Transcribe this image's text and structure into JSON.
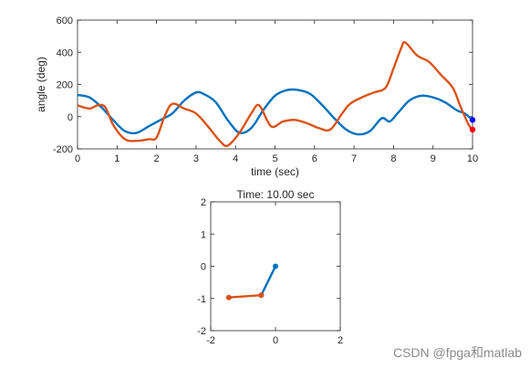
{
  "chart_data": [
    {
      "type": "line",
      "xlabel": "time (sec)",
      "ylabel": "angle (deg)",
      "xlim": [
        0,
        10
      ],
      "ylim": [
        -200,
        600
      ],
      "xticks": [
        "0",
        "1",
        "2",
        "3",
        "4",
        "5",
        "6",
        "7",
        "8",
        "9",
        "10"
      ],
      "yticks": [
        "-200",
        "0",
        "200",
        "400",
        "600"
      ],
      "grid": false,
      "series": [
        {
          "color": "#0072BD",
          "x": [
            0,
            0.3,
            0.6,
            0.9,
            1.2,
            1.5,
            1.8,
            2.1,
            2.4,
            2.7,
            3.0,
            3.2,
            3.5,
            3.8,
            4.1,
            4.4,
            4.7,
            5.0,
            5.3,
            5.6,
            5.9,
            6.2,
            6.5,
            6.8,
            7.1,
            7.4,
            7.7,
            7.9,
            8.1,
            8.4,
            8.7,
            9.0,
            9.3,
            9.6,
            9.8,
            10.0
          ],
          "y": [
            135,
            120,
            60,
            -20,
            -90,
            -100,
            -60,
            -20,
            20,
            100,
            150,
            140,
            90,
            -20,
            -100,
            -70,
            40,
            130,
            165,
            165,
            140,
            70,
            -10,
            -80,
            -110,
            -90,
            -10,
            -30,
            20,
            100,
            130,
            120,
            90,
            40,
            20,
            -20
          ]
        },
        {
          "color": "#D95319",
          "x": [
            0,
            0.3,
            0.5,
            0.7,
            0.9,
            1.2,
            1.5,
            1.8,
            2.0,
            2.2,
            2.4,
            2.7,
            3.0,
            3.3,
            3.6,
            3.8,
            4.1,
            4.4,
            4.6,
            4.9,
            5.2,
            5.5,
            5.8,
            6.1,
            6.4,
            6.7,
            6.9,
            7.2,
            7.5,
            7.8,
            8.0,
            8.2,
            8.3,
            8.6,
            8.9,
            9.2,
            9.5,
            9.7,
            9.9,
            10.0
          ],
          "y": [
            70,
            50,
            70,
            60,
            -50,
            -140,
            -150,
            -140,
            -130,
            0,
            80,
            50,
            20,
            -60,
            -150,
            -180,
            -100,
            20,
            70,
            -60,
            -30,
            -20,
            -40,
            -70,
            -80,
            20,
            80,
            120,
            150,
            180,
            300,
            430,
            460,
            380,
            340,
            260,
            180,
            60,
            -50,
            -80
          ]
        }
      ],
      "markers": [
        {
          "series": 0,
          "x": 10,
          "y": -20,
          "color": "#0000FF"
        },
        {
          "series": 1,
          "x": 10,
          "y": -80,
          "color": "#FF0000"
        }
      ]
    },
    {
      "type": "line",
      "title": "Time: 10.00 sec",
      "xlim": [
        -2,
        2
      ],
      "ylim": [
        -2,
        2
      ],
      "xticks": [
        "-2",
        "0",
        "2"
      ],
      "yticks": [
        "-2",
        "-1",
        "0",
        "1",
        "2"
      ],
      "grid": false,
      "series": [
        {
          "color": "#0072BD",
          "x": [
            0,
            -0.44
          ],
          "y": [
            0,
            -0.9
          ]
        },
        {
          "color": "#D95319",
          "x": [
            -0.44,
            -1.44
          ],
          "y": [
            -0.9,
            -0.97
          ]
        }
      ]
    }
  ],
  "watermark": "CSDN @fpga和matlab"
}
